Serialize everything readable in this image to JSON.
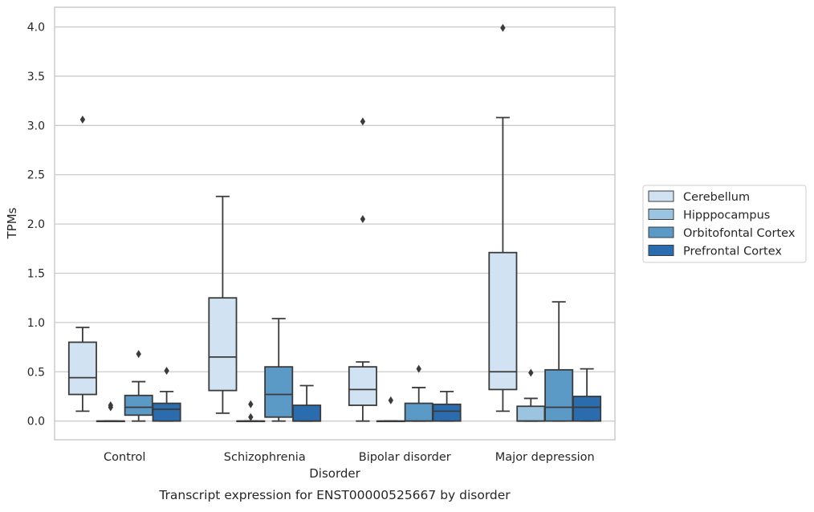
{
  "chart_data": {
    "type": "box",
    "title": "",
    "caption": "Transcript expression for ENST00000525667 by disorder",
    "xlabel": "Disorder",
    "ylabel": "TPMs",
    "ylim": [
      -0.19,
      4.2
    ],
    "yticks": [
      "0.0",
      "0.5",
      "1.0",
      "1.5",
      "2.0",
      "2.5",
      "3.0",
      "3.5",
      "4.0"
    ],
    "categories": [
      "Control",
      "Schizophrenia",
      "Bipolar disorder",
      "Major depression"
    ],
    "grid": "horizontal",
    "legend_position": "right",
    "series": [
      {
        "name": "Cerebellum",
        "color": "#d1e2f2",
        "boxes": [
          {
            "whislo": 0.1,
            "q1": 0.27,
            "med": 0.44,
            "q3": 0.8,
            "whishi": 0.95,
            "fliers": [
              3.06
            ]
          },
          {
            "whislo": 0.08,
            "q1": 0.31,
            "med": 0.65,
            "q3": 1.25,
            "whishi": 2.28,
            "fliers": []
          },
          {
            "whislo": 0.0,
            "q1": 0.16,
            "med": 0.32,
            "q3": 0.55,
            "whishi": 0.6,
            "fliers": [
              2.05,
              3.04
            ]
          },
          {
            "whislo": 0.1,
            "q1": 0.32,
            "med": 0.5,
            "q3": 1.71,
            "whishi": 3.08,
            "fliers": [
              3.99
            ]
          }
        ]
      },
      {
        "name": "Hipppocampus",
        "color": "#9bc4e0",
        "boxes": [
          {
            "whislo": 0.0,
            "q1": 0.0,
            "med": 0.0,
            "q3": 0.0,
            "whishi": 0.0,
            "fliers": [
              0.14,
              0.16
            ]
          },
          {
            "whislo": 0.0,
            "q1": 0.0,
            "med": 0.0,
            "q3": 0.0,
            "whishi": 0.0,
            "fliers": [
              0.04,
              0.17
            ]
          },
          {
            "whislo": 0.0,
            "q1": 0.0,
            "med": 0.0,
            "q3": 0.0,
            "whishi": 0.0,
            "fliers": [
              0.21
            ]
          },
          {
            "whislo": 0.0,
            "q1": 0.0,
            "med": 0.0,
            "q3": 0.15,
            "whishi": 0.23,
            "fliers": [
              0.49
            ]
          }
        ]
      },
      {
        "name": "Orbitofontal Cortex",
        "color": "#5b9ac7",
        "boxes": [
          {
            "whislo": 0.0,
            "q1": 0.06,
            "med": 0.14,
            "q3": 0.26,
            "whishi": 0.4,
            "fliers": [
              0.68
            ]
          },
          {
            "whislo": 0.0,
            "q1": 0.04,
            "med": 0.27,
            "q3": 0.55,
            "whishi": 1.04,
            "fliers": []
          },
          {
            "whislo": 0.0,
            "q1": 0.0,
            "med": 0.0,
            "q3": 0.18,
            "whishi": 0.34,
            "fliers": [
              0.53
            ]
          },
          {
            "whislo": 0.0,
            "q1": 0.0,
            "med": 0.14,
            "q3": 0.52,
            "whishi": 1.21,
            "fliers": []
          }
        ]
      },
      {
        "name": "Prefrontal Cortex",
        "color": "#2a6cae",
        "boxes": [
          {
            "whislo": 0.0,
            "q1": 0.0,
            "med": 0.12,
            "q3": 0.18,
            "whishi": 0.3,
            "fliers": [
              0.51
            ]
          },
          {
            "whislo": 0.0,
            "q1": 0.0,
            "med": 0.0,
            "q3": 0.16,
            "whishi": 0.36,
            "fliers": []
          },
          {
            "whislo": 0.0,
            "q1": 0.0,
            "med": 0.1,
            "q3": 0.17,
            "whishi": 0.3,
            "fliers": []
          },
          {
            "whislo": 0.0,
            "q1": 0.0,
            "med": 0.14,
            "q3": 0.25,
            "whishi": 0.53,
            "fliers": []
          }
        ]
      }
    ]
  }
}
